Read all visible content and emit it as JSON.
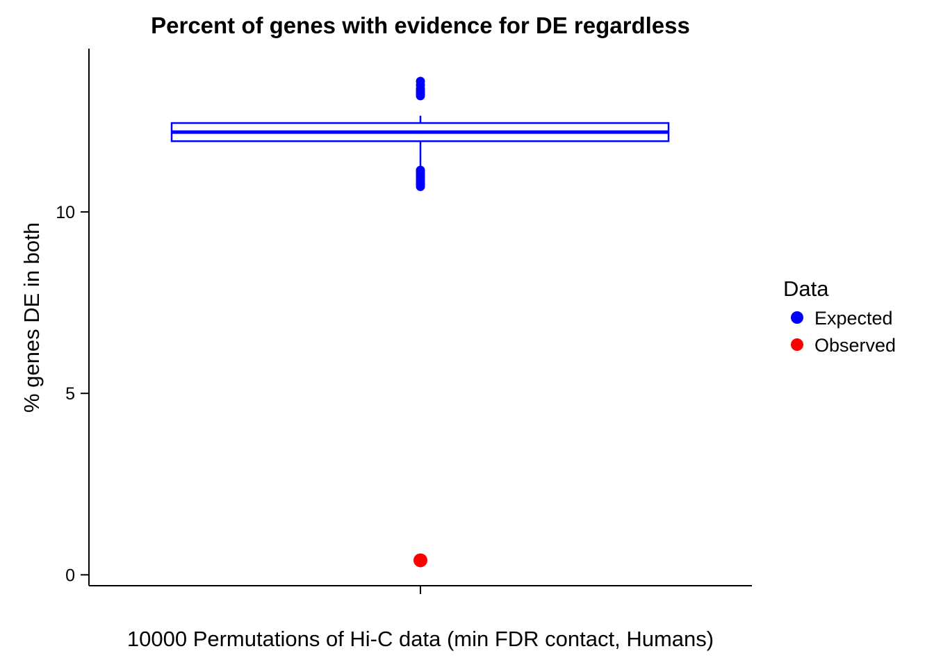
{
  "chart_data": {
    "type": "boxplot",
    "title": "Percent of genes with evidence for DE regardless",
    "xlabel": "10000 Permutations of Hi-C data (min FDR contact, Humans)",
    "ylabel": "% genes DE in both",
    "ylim": [
      -0.3,
      14.5
    ],
    "yticks": [
      0,
      5,
      10
    ],
    "grid": false,
    "legend": {
      "title": "Data",
      "placement": "right",
      "entries": [
        {
          "label": "Expected",
          "color": "#0000ff"
        },
        {
          "label": "Observed",
          "color": "#ff0000"
        }
      ]
    },
    "expected": {
      "color": "#0000ff",
      "q1": 11.95,
      "median": 12.2,
      "q3": 12.45,
      "whisker_low": 11.2,
      "whisker_high": 12.65,
      "outliers": [
        10.7,
        10.75,
        10.8,
        10.85,
        10.9,
        10.95,
        11.0,
        11.05,
        11.1,
        11.15,
        13.2,
        13.25,
        13.3,
        13.35,
        13.4,
        13.5,
        13.6
      ]
    },
    "observed": {
      "color": "#ff0000",
      "value": 0.4
    }
  }
}
